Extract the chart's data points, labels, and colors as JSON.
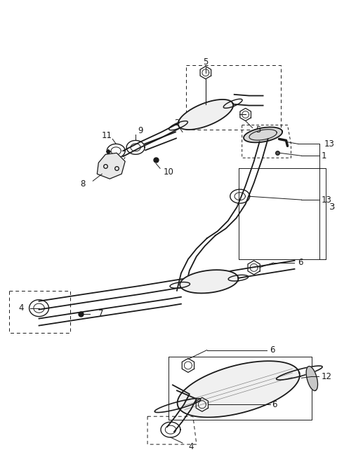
{
  "bg_color": "#ffffff",
  "line_color": "#1a1a1a",
  "label_color": "#1a1a1a",
  "label_fontsize": 8.5,
  "fig_width": 4.8,
  "fig_height": 6.55,
  "dpi": 100
}
